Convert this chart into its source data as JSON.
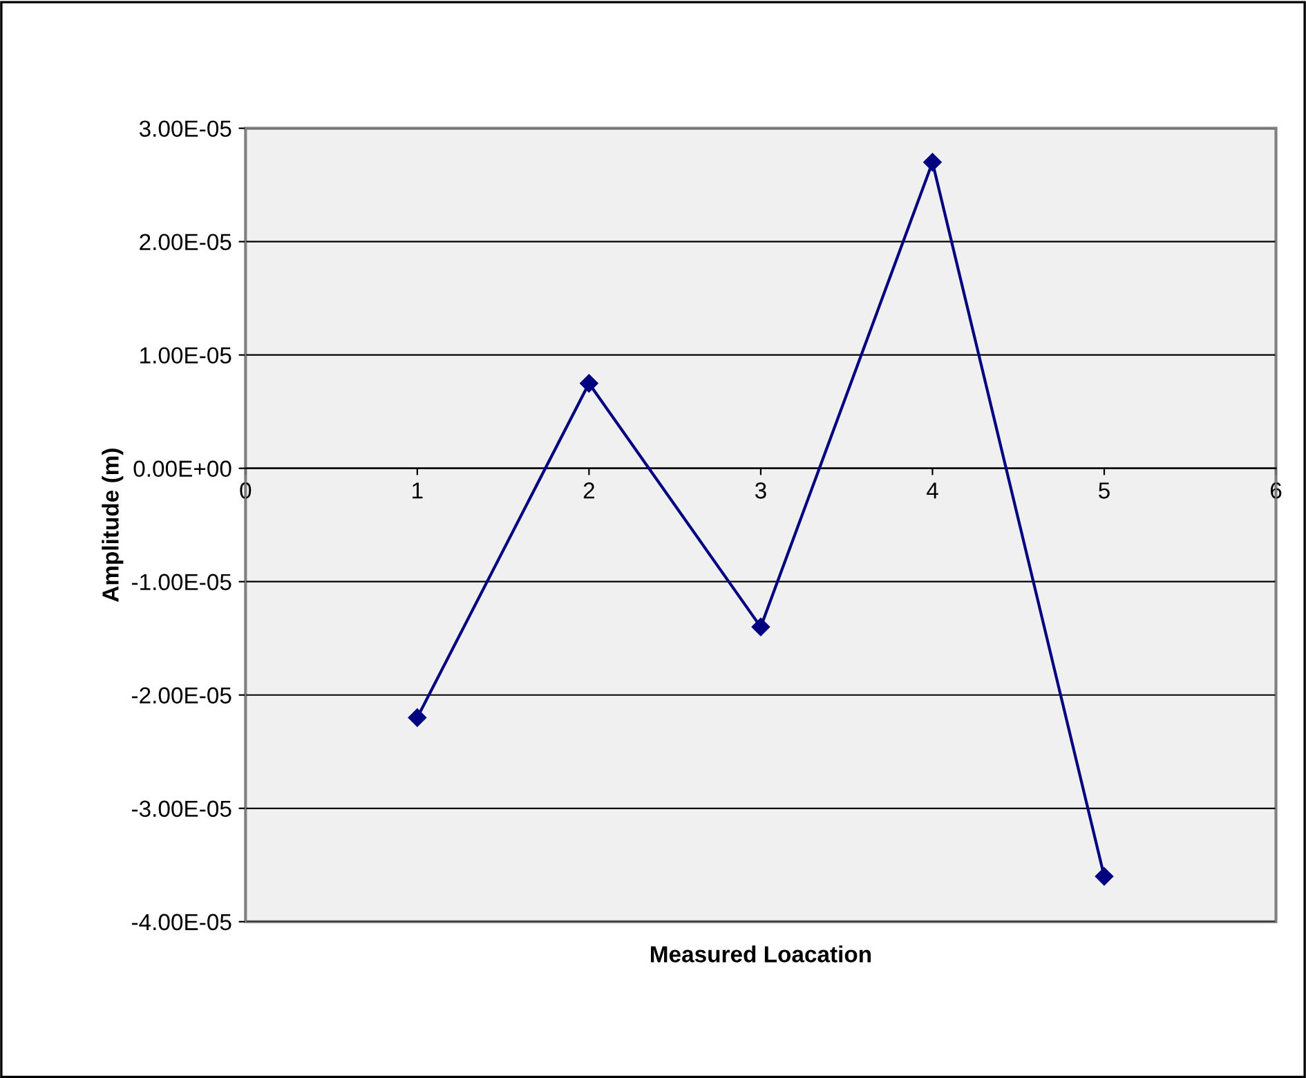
{
  "chart_data": {
    "type": "line",
    "xlabel": "Measured Loacation",
    "ylabel": "Amplitude (m)",
    "x": [
      1,
      2,
      3,
      4,
      5
    ],
    "series": [
      {
        "color": "#000080",
        "values": [
          -2.2e-05,
          7.5e-06,
          -1.4e-05,
          2.7e-05,
          -3.6e-05
        ]
      }
    ],
    "marker": "diamond",
    "line_style": "solid",
    "xlim": [
      0,
      6
    ],
    "xticks": [
      0,
      1,
      2,
      3,
      4,
      5,
      6
    ],
    "ylim": [
      -4e-05,
      3e-05
    ],
    "yticks": [
      {
        "value": -4e-05,
        "label": "-4.00E-05"
      },
      {
        "value": -3e-05,
        "label": "-3.00E-05"
      },
      {
        "value": -2e-05,
        "label": "-2.00E-05"
      },
      {
        "value": -1e-05,
        "label": "-1.00E-05"
      },
      {
        "value": 0,
        "label": "0.00E+00"
      },
      {
        "value": 1e-05,
        "label": "1.00E-05"
      },
      {
        "value": 2e-05,
        "label": "2.00E-05"
      },
      {
        "value": 3e-05,
        "label": "3.00E-05"
      }
    ],
    "grid": "y",
    "legend": false
  }
}
